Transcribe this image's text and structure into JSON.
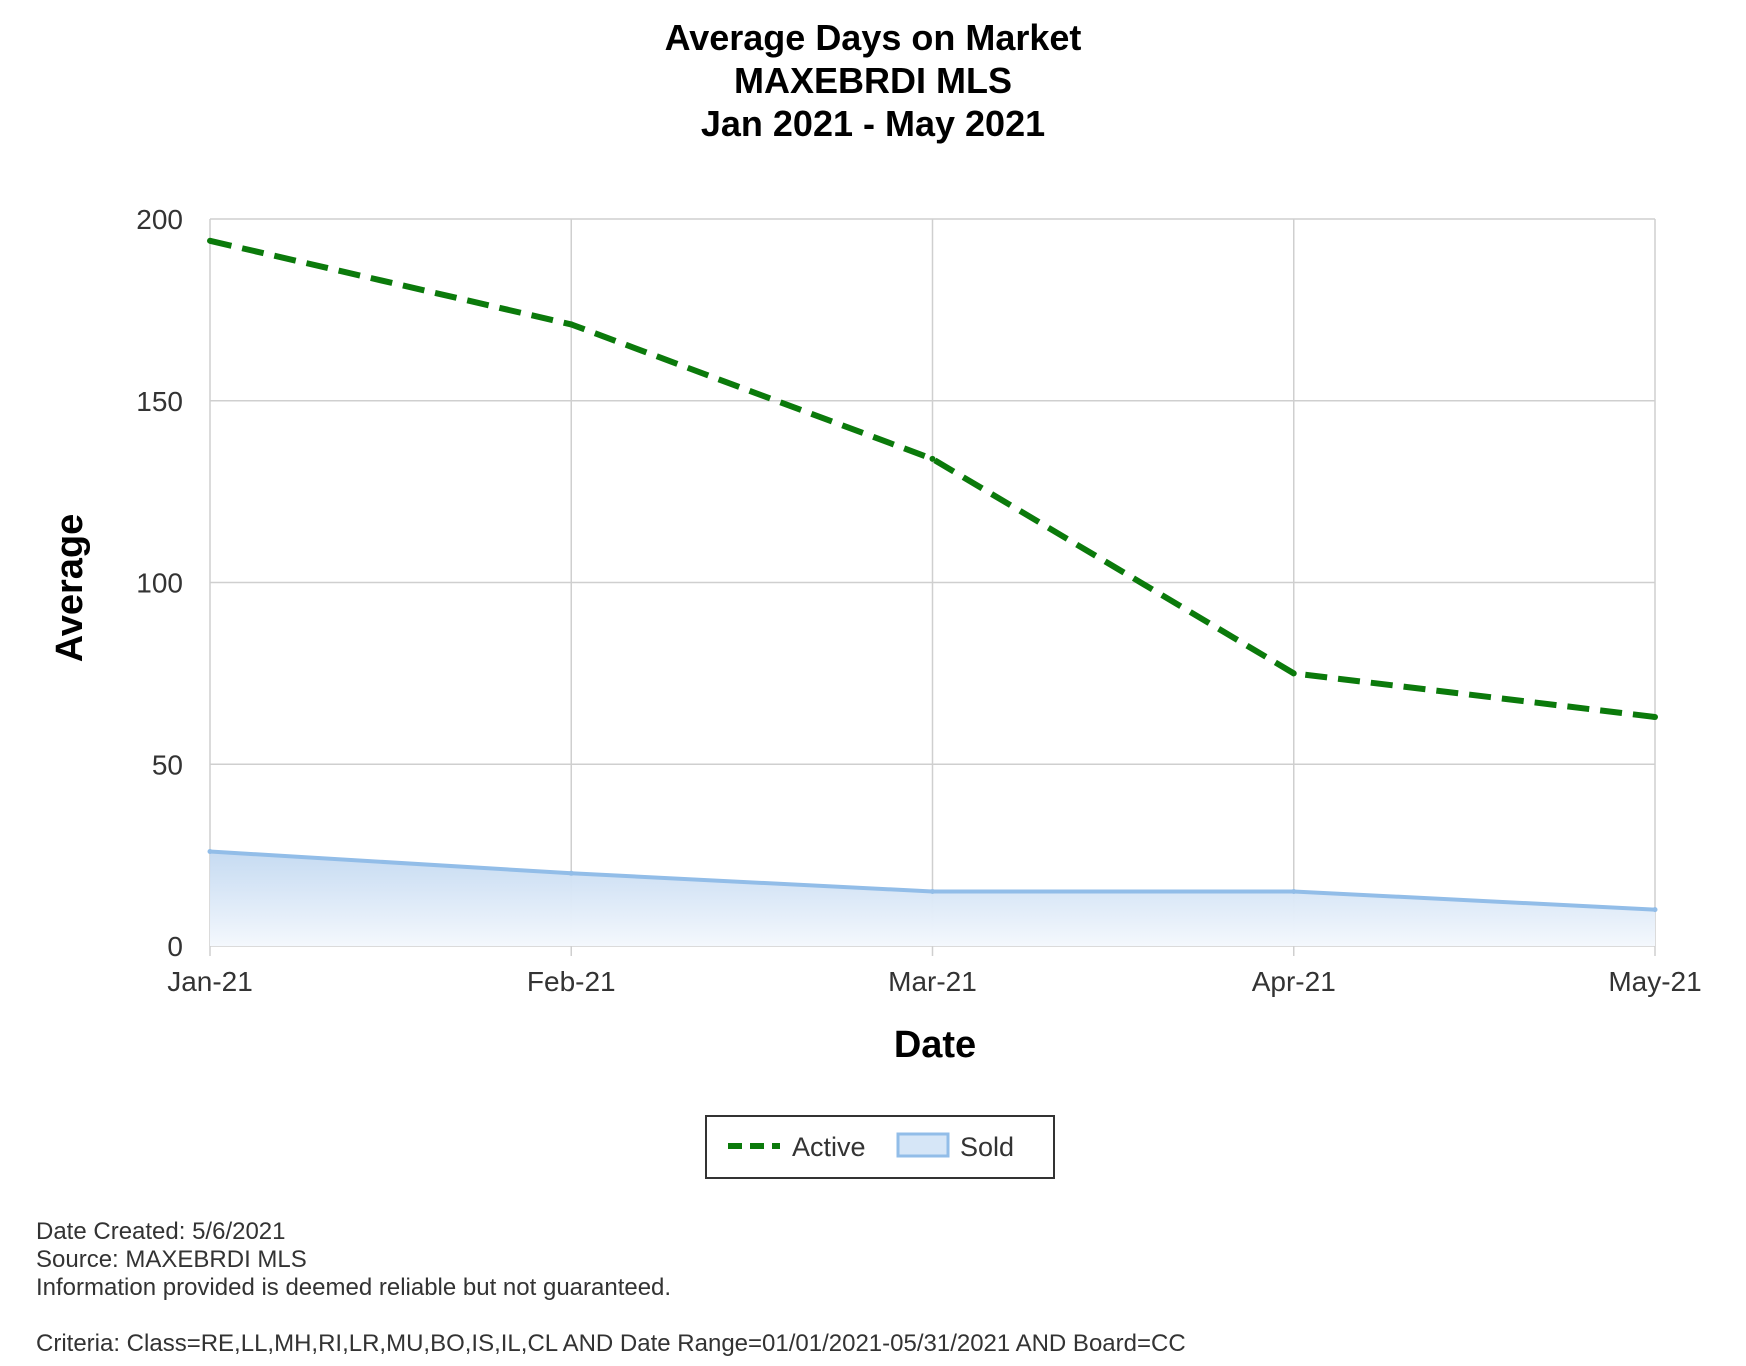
{
  "chart_data": {
    "type": "line",
    "title_lines": [
      "Average Days on Market",
      "MAXEBRDI MLS",
      "Jan 2021 - May 2021"
    ],
    "xlabel": "Date",
    "ylabel": "Average",
    "categories": [
      "Jan-21",
      "Feb-21",
      "Mar-21",
      "Apr-21",
      "May-21"
    ],
    "ylim": [
      0,
      200
    ],
    "yticks": [
      0,
      50,
      100,
      150,
      200
    ],
    "grid": true,
    "legend_position": "bottom-center",
    "series": [
      {
        "name": "Active",
        "style": "dashed-line",
        "color": "#0b7a0b",
        "values": [
          194,
          171,
          134,
          75,
          63
        ]
      },
      {
        "name": "Sold",
        "style": "area",
        "color": "#92bde8",
        "values": [
          26,
          20,
          15,
          15,
          10
        ]
      }
    ]
  },
  "footer": {
    "date_created": "Date Created: 5/6/2021",
    "source": "Source: MAXEBRDI MLS",
    "disclaimer": "Information provided is deemed reliable but not guaranteed.",
    "criteria": "Criteria: Class=RE,LL,MH,RI,LR,MU,BO,IS,IL,CL AND Date Range=01/01/2021-05/31/2021 AND Board=CC"
  }
}
